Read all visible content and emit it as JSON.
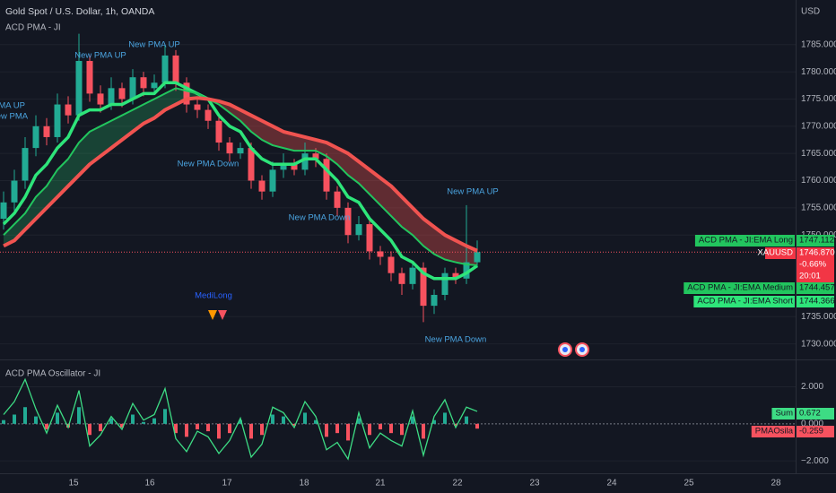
{
  "chart_data": [
    {
      "type": "candlestick",
      "title": "Gold Spot / U.S. Dollar, 1h, OANDA",
      "subtitle": "ACD PMA - JI",
      "currency": "USD",
      "up_color": "#22ab94",
      "down_color": "#f7525f",
      "open": [
        1753,
        1756,
        1760,
        1766,
        1770,
        1768,
        1774,
        1772,
        1782,
        1776,
        1774,
        1777,
        1775,
        1779,
        1777,
        1778,
        1783,
        1778,
        1774,
        1773,
        1771,
        1767,
        1765,
        1766,
        1760,
        1758,
        1762,
        1763,
        1762,
        1765,
        1764,
        1758,
        1755,
        1750,
        1752,
        1747,
        1746,
        1743,
        1741,
        1744,
        1737,
        1739,
        1743,
        1742,
        1745
      ],
      "high": [
        1758,
        1762,
        1768,
        1772,
        1771.5,
        1776,
        1775.5,
        1787,
        1783,
        1777.5,
        1779,
        1778,
        1780.5,
        1780,
        1779.5,
        1785,
        1784,
        1779,
        1775,
        1774,
        1772,
        1768,
        1767,
        1767,
        1761,
        1763.5,
        1765,
        1764,
        1767,
        1766,
        1765,
        1759,
        1756,
        1753.5,
        1753,
        1748,
        1747,
        1744,
        1745,
        1745,
        1740,
        1744,
        1744,
        1755.5,
        1749
      ],
      "low": [
        1751,
        1754.5,
        1758.5,
        1764.5,
        1766.5,
        1767,
        1770.5,
        1771,
        1774.5,
        1772.5,
        1773,
        1773.5,
        1774,
        1775.5,
        1776,
        1777,
        1776.5,
        1772.5,
        1771.5,
        1769.5,
        1765.5,
        1763.5,
        1764,
        1758.5,
        1756.5,
        1757,
        1760.5,
        1761,
        1761,
        1762.5,
        1756.5,
        1753.5,
        1748.5,
        1749,
        1745.5,
        1744.5,
        1741.5,
        1739,
        1740,
        1734,
        1735.5,
        1738,
        1741,
        1741,
        1744
      ],
      "close": [
        1756,
        1760,
        1766,
        1770,
        1768,
        1774,
        1772,
        1782,
        1776,
        1774,
        1777,
        1775,
        1779,
        1777,
        1778,
        1783,
        1778,
        1774,
        1773,
        1771,
        1767,
        1765,
        1766,
        1760,
        1758,
        1762,
        1763,
        1762,
        1765,
        1764,
        1758,
        1755,
        1750,
        1752,
        1747,
        1746,
        1743,
        1741,
        1744,
        1737,
        1739,
        1743,
        1742,
        1745,
        1746.87
      ],
      "series": [
        {
          "name": "ACD PMA - JI:EMA Short",
          "color": "#2ee57a",
          "values": [
            1752,
            1754,
            1757,
            1761,
            1763,
            1766,
            1768,
            1772,
            1773,
            1773,
            1774,
            1774,
            1775,
            1776,
            1776,
            1778,
            1778,
            1777,
            1776,
            1775,
            1772,
            1770,
            1769,
            1766,
            1764,
            1763,
            1763,
            1763,
            1764,
            1764,
            1762,
            1760,
            1757,
            1756,
            1753,
            1751,
            1749,
            1746,
            1745,
            1743,
            1742,
            1742,
            1742,
            1743,
            1744.366
          ]
        },
        {
          "name": "ACD PMA - JI:EMA Medium",
          "color": "#22c55e",
          "values": [
            1750,
            1752,
            1754,
            1757,
            1759,
            1762,
            1764,
            1767,
            1769,
            1770,
            1771,
            1772,
            1773,
            1774,
            1775,
            1776,
            1777,
            1776.5,
            1776,
            1775,
            1774,
            1772.5,
            1771,
            1769,
            1767.5,
            1766.5,
            1766,
            1765.5,
            1765.5,
            1765.5,
            1764.5,
            1763,
            1761,
            1759.5,
            1757.5,
            1755.5,
            1753.5,
            1751.5,
            1750,
            1748,
            1746.5,
            1745.5,
            1745,
            1744.6,
            1744.457
          ]
        },
        {
          "name": "ACD PMA - JI:EMA Long",
          "color": "#f05350",
          "values": [
            1748,
            1749,
            1751,
            1753,
            1755,
            1757,
            1759,
            1761,
            1763,
            1764.5,
            1766,
            1767.5,
            1769,
            1770.5,
            1771.5,
            1773,
            1774,
            1775,
            1775.2,
            1775,
            1774.6,
            1774,
            1773,
            1772,
            1771,
            1770,
            1769,
            1768.5,
            1768,
            1767.5,
            1767,
            1766,
            1765,
            1763.5,
            1762,
            1760.5,
            1759,
            1757,
            1755,
            1753,
            1751.5,
            1750,
            1749,
            1748,
            1747.112
          ]
        }
      ],
      "last_price": {
        "symbol": "XAUUSD",
        "value": 1746.87,
        "label": "1746.870",
        "change": "-0.66%",
        "countdown": "20:01"
      },
      "annotations": [
        "New PMA UP",
        "New PMA UP",
        "PMA UP",
        "New PMA",
        "New PMA Down",
        "New PMA Down",
        "New PMA UP",
        "New PMA Down",
        "MediLong"
      ],
      "ylim": [
        1727.3,
        1793.2
      ],
      "yticks": [
        {
          "value": 1785,
          "label": "1785.000"
        },
        {
          "value": 1780,
          "label": "1780.000"
        },
        {
          "value": 1775,
          "label": "1775.000"
        },
        {
          "value": 1770,
          "label": "1770.000"
        },
        {
          "value": 1765,
          "label": "1765.000"
        },
        {
          "value": 1760,
          "label": "1760.000"
        },
        {
          "value": 1755,
          "label": "1755.000"
        },
        {
          "value": 1750,
          "label": "1750.000"
        },
        {
          "value": 1735,
          "label": "1735.000"
        },
        {
          "value": 1730,
          "label": "1730.000"
        }
      ],
      "time_labels": [
        "15",
        "16",
        "17",
        "18",
        "21",
        "22",
        "23",
        "24",
        "25",
        "28"
      ],
      "grid": true
    },
    {
      "type": "oscillator",
      "title": "ACD PMA Oscillator - JI",
      "series": [
        {
          "name": "Sum",
          "color": "#3ddc84",
          "values": [
            0.5,
            1.2,
            2.4,
            0.8,
            -0.5,
            1.0,
            -0.2,
            1.8,
            -1.2,
            -0.6,
            0.4,
            -0.3,
            1.1,
            0.2,
            0.5,
            1.9,
            -0.8,
            -1.5,
            -0.4,
            -0.7,
            -1.6,
            -0.9,
            0.3,
            -1.8,
            -1.1,
            0.9,
            0.6,
            -0.2,
            1.2,
            0.4,
            -1.4,
            -1.0,
            -1.9,
            0.6,
            -1.3,
            -0.5,
            -0.9,
            -1.2,
            0.7,
            -1.7,
            0.4,
            1.3,
            -0.2,
            0.9,
            0.672
          ]
        },
        {
          "name": "PMAOsila",
          "color": "#f7525f",
          "up_color": "#22ab94",
          "down_color": "#f7525f",
          "values": [
            0.2,
            0.5,
            0.9,
            0.4,
            -0.3,
            0.6,
            -0.2,
            0.9,
            -0.6,
            -0.4,
            0.3,
            -0.2,
            0.5,
            0.1,
            0.3,
            0.8,
            -0.5,
            -0.7,
            -0.3,
            -0.4,
            -0.8,
            -0.5,
            0.2,
            -0.8,
            -0.6,
            0.5,
            0.4,
            -0.1,
            0.6,
            0.2,
            -0.7,
            -0.5,
            -0.9,
            0.3,
            -0.6,
            -0.3,
            -0.5,
            -0.6,
            0.4,
            -0.8,
            0.2,
            0.6,
            -0.1,
            0.4,
            -0.259
          ]
        }
      ],
      "ylim": [
        -2.67,
        3.38
      ],
      "yticks": [
        {
          "value": 2,
          "label": "2.000"
        },
        {
          "value": 0,
          "label": "0.000"
        },
        {
          "value": -2,
          "label": "−2.000"
        }
      ],
      "grid": true
    }
  ]
}
